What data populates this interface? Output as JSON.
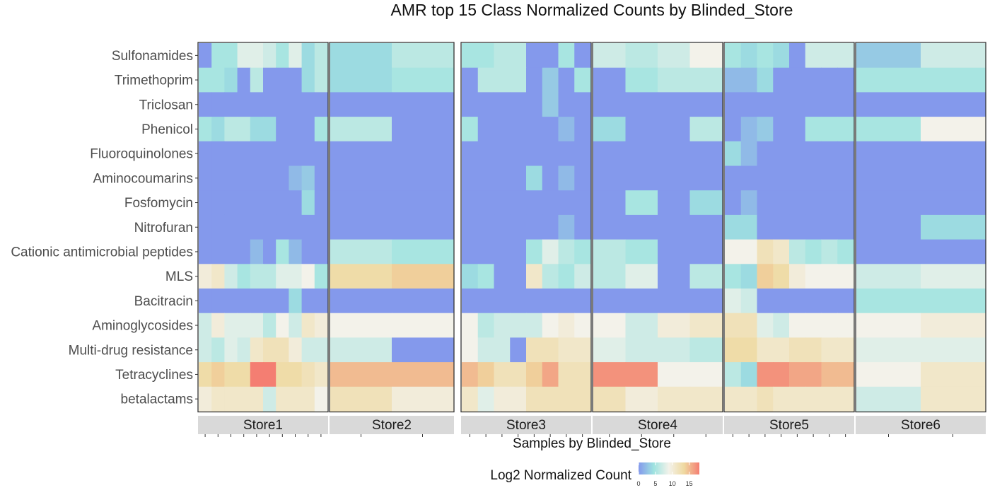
{
  "chart_data": {
    "type": "heatmap",
    "title": "AMR top 15 Class Normalized Counts by Blinded_Store",
    "xlabel": "Samples by Blinded_Store",
    "ylabel": "",
    "rows": [
      "Sulfonamides",
      "Trimethoprim",
      "Triclosan",
      "Phenicol",
      "Fluoroquinolones",
      "Aminocoumarins",
      "Fosfomycin",
      "Nitrofuran",
      "Cationic antimicrobial peptides",
      "MLS",
      "Bacitracin",
      "Aminoglycosides",
      "Multi-drug resistance",
      "Tetracyclines",
      "betalactams"
    ],
    "legend": {
      "title": "Log2 Normalized Count",
      "ticks": [
        0,
        5,
        10,
        15
      ],
      "range": [
        0,
        18
      ],
      "colors": [
        "#8499ec",
        "#9fe3e0",
        "#f3f2ea",
        "#efd9a0",
        "#f47e72"
      ]
    },
    "panels": [
      {
        "name": "Store1",
        "samples": 10,
        "values": [
          [
            0,
            5,
            5,
            8,
            8,
            7,
            5,
            8,
            4,
            6
          ],
          [
            5,
            5,
            4,
            0,
            6,
            0,
            0,
            0,
            4,
            6
          ],
          [
            0,
            0,
            0,
            0,
            0,
            0,
            0,
            0,
            0,
            0
          ],
          [
            5,
            4,
            6,
            6,
            4,
            4,
            0,
            0,
            0,
            5
          ],
          [
            0,
            0,
            0,
            0,
            0,
            0,
            0,
            0,
            0,
            0
          ],
          [
            0,
            0,
            0,
            0,
            0,
            0,
            0,
            2,
            3,
            0
          ],
          [
            0,
            0,
            0,
            0,
            0,
            0,
            0,
            0,
            4,
            0
          ],
          [
            0,
            0,
            0,
            0,
            0,
            0,
            0,
            0,
            0,
            0
          ],
          [
            0,
            0,
            0,
            0,
            2,
            0,
            5,
            2,
            0,
            0
          ],
          [
            10,
            11,
            7,
            5,
            6,
            6,
            8,
            8,
            9,
            5
          ],
          [
            0,
            0,
            0,
            0,
            0,
            0,
            0,
            4,
            0,
            0
          ],
          [
            7,
            10,
            8,
            8,
            8,
            6,
            9,
            7,
            11,
            10
          ],
          [
            7,
            6,
            8,
            7,
            11,
            12,
            12,
            10,
            7,
            7
          ],
          [
            13,
            14,
            13,
            13,
            18,
            18,
            13,
            13,
            12,
            11
          ],
          [
            10,
            11,
            11,
            11,
            11,
            7,
            11,
            11,
            11,
            9
          ]
        ]
      },
      {
        "name": "Store2",
        "samples": 2,
        "values": [
          [
            4,
            6
          ],
          [
            4,
            5
          ],
          [
            0,
            0
          ],
          [
            6,
            0
          ],
          [
            0,
            0
          ],
          [
            0,
            0
          ],
          [
            0,
            0
          ],
          [
            0,
            0
          ],
          [
            6,
            5
          ],
          [
            13,
            14
          ],
          [
            0,
            0
          ],
          [
            9,
            9
          ],
          [
            7,
            0
          ],
          [
            15,
            15
          ],
          [
            12,
            10
          ]
        ]
      },
      {
        "name": "Store3",
        "samples": 8,
        "values": [
          [
            5,
            5,
            6,
            6,
            0,
            0,
            5,
            0
          ],
          [
            0,
            6,
            6,
            6,
            0,
            3,
            0,
            5
          ],
          [
            0,
            0,
            0,
            0,
            0,
            3,
            0,
            0
          ],
          [
            5,
            0,
            0,
            0,
            0,
            0,
            2,
            0
          ],
          [
            0,
            0,
            0,
            0,
            0,
            0,
            0,
            0
          ],
          [
            0,
            0,
            0,
            0,
            4,
            0,
            2,
            0
          ],
          [
            0,
            0,
            0,
            0,
            0,
            0,
            0,
            0
          ],
          [
            0,
            0,
            0,
            0,
            0,
            0,
            2,
            0
          ],
          [
            0,
            0,
            0,
            0,
            5,
            8,
            6,
            5
          ],
          [
            4,
            5,
            0,
            0,
            11,
            6,
            5,
            7
          ],
          [
            0,
            0,
            0,
            0,
            0,
            0,
            0,
            0
          ],
          [
            9,
            6,
            7,
            7,
            7,
            9,
            10,
            9
          ],
          [
            9,
            7,
            7,
            0,
            12,
            12,
            11,
            11
          ],
          [
            15,
            14,
            12,
            12,
            14,
            16,
            12,
            12
          ],
          [
            11,
            8,
            10,
            10,
            12,
            12,
            12,
            12
          ]
        ]
      },
      {
        "name": "Store4",
        "samples": 4,
        "values": [
          [
            7,
            6,
            7,
            9
          ],
          [
            0,
            5,
            6,
            6
          ],
          [
            0,
            0,
            0,
            0
          ],
          [
            4,
            0,
            0,
            6
          ],
          [
            0,
            0,
            0,
            0
          ],
          [
            0,
            0,
            0,
            0
          ],
          [
            0,
            5,
            0,
            4
          ],
          [
            0,
            0,
            0,
            0
          ],
          [
            6,
            5,
            0,
            0
          ],
          [
            6,
            8,
            0,
            6
          ],
          [
            0,
            0,
            0,
            0
          ],
          [
            9,
            7,
            10,
            11
          ],
          [
            8,
            7,
            7,
            6
          ],
          [
            17,
            17,
            9,
            9
          ],
          [
            12,
            10,
            11,
            11
          ]
        ]
      },
      {
        "name": "Store5",
        "samples": 8,
        "values": [
          [
            5,
            4,
            5,
            4,
            0,
            7,
            7,
            7
          ],
          [
            2,
            2,
            4,
            0,
            0,
            0,
            0,
            0
          ],
          [
            0,
            0,
            0,
            0,
            0,
            0,
            0,
            0
          ],
          [
            0,
            2,
            3,
            0,
            0,
            5,
            5,
            5
          ],
          [
            4,
            2,
            0,
            0,
            0,
            0,
            0,
            0
          ],
          [
            0,
            0,
            0,
            0,
            0,
            0,
            0,
            0
          ],
          [
            0,
            2,
            0,
            0,
            0,
            0,
            0,
            0
          ],
          [
            4,
            4,
            0,
            0,
            0,
            0,
            0,
            0
          ],
          [
            9,
            9,
            12,
            11,
            6,
            5,
            6,
            5
          ],
          [
            5,
            4,
            14,
            13,
            10,
            9,
            9,
            9
          ],
          [
            8,
            7,
            0,
            0,
            0,
            0,
            0,
            0
          ],
          [
            12,
            12,
            8,
            7,
            9,
            9,
            9,
            9
          ],
          [
            13,
            13,
            11,
            11,
            12,
            12,
            11,
            11
          ],
          [
            6,
            4,
            17,
            17,
            16,
            16,
            15,
            15
          ],
          [
            11,
            11,
            12,
            11,
            11,
            11,
            11,
            11
          ]
        ]
      },
      {
        "name": "Store6",
        "samples": 2,
        "values": [
          [
            3,
            7
          ],
          [
            5,
            5
          ],
          [
            0,
            0
          ],
          [
            5,
            9
          ],
          [
            0,
            0
          ],
          [
            0,
            0
          ],
          [
            0,
            0
          ],
          [
            0,
            4
          ],
          [
            0,
            0
          ],
          [
            7,
            8
          ],
          [
            5,
            5
          ],
          [
            9,
            10
          ],
          [
            8,
            8
          ],
          [
            9,
            11
          ],
          [
            7,
            11
          ]
        ]
      }
    ]
  }
}
